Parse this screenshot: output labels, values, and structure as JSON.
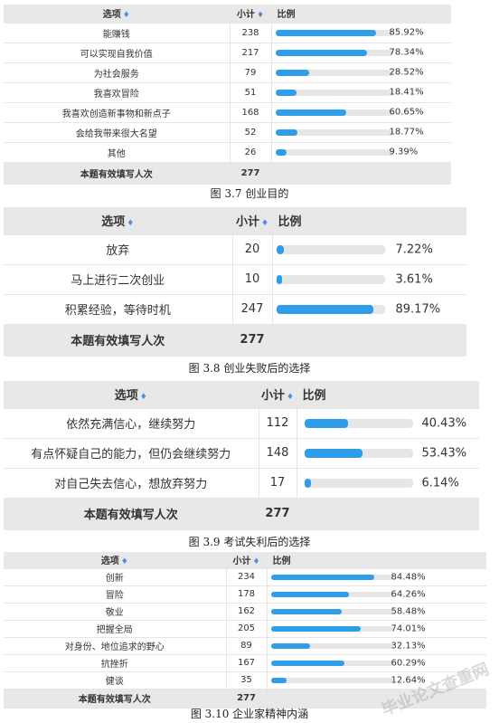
{
  "tables": [
    {
      "headers": {
        "option": "选项",
        "count": "小计",
        "ratio": "比例",
        "sort_glyph": "♦"
      },
      "rows": [
        {
          "label": "能赚钱",
          "count": "238",
          "pct": "85.92%",
          "ratio": 0.8592
        },
        {
          "label": "可以实现自我价值",
          "count": "217",
          "pct": "78.34%",
          "ratio": 0.7834
        },
        {
          "label": "为社会服务",
          "count": "79",
          "pct": "28.52%",
          "ratio": 0.2852
        },
        {
          "label": "我喜欢冒险",
          "count": "51",
          "pct": "18.41%",
          "ratio": 0.1841
        },
        {
          "label": "我喜欢创造新事物和新点子",
          "count": "168",
          "pct": "60.65%",
          "ratio": 0.6065
        },
        {
          "label": "会给我带来很大名望",
          "count": "52",
          "pct": "18.77%",
          "ratio": 0.1877
        },
        {
          "label": "其他",
          "count": "26",
          "pct": "9.39%",
          "ratio": 0.0939
        }
      ],
      "total": {
        "label": "本题有效填写人次",
        "count": "277"
      },
      "caption": "图 3.7   创业目的"
    },
    {
      "headers": {
        "option": "选项",
        "count": "小计",
        "ratio": "比例",
        "sort_glyph": "♦"
      },
      "rows": [
        {
          "label": "放弃",
          "count": "20",
          "pct": "7.22%",
          "ratio": 0.0722
        },
        {
          "label": "马上进行二次创业",
          "count": "10",
          "pct": "3.61%",
          "ratio": 0.0361
        },
        {
          "label": "积累经验，等待时机",
          "count": "247",
          "pct": "89.17%",
          "ratio": 0.8917
        }
      ],
      "total": {
        "label": "本题有效填写人次",
        "count": "277"
      },
      "caption": "图 3.8   创业失败后的选择"
    },
    {
      "headers": {
        "option": "选项",
        "count": "小计",
        "ratio": "比例",
        "sort_glyph": "♦"
      },
      "rows": [
        {
          "label": "依然充满信心，继续努力",
          "count": "112",
          "pct": "40.43%",
          "ratio": 0.4043
        },
        {
          "label": "有点怀疑自己的能力，但仍会继续努力",
          "count": "148",
          "pct": "53.43%",
          "ratio": 0.5343
        },
        {
          "label": "对自己失去信心，想放弃努力",
          "count": "17",
          "pct": "6.14%",
          "ratio": 0.0614
        }
      ],
      "total": {
        "label": "本题有效填写人次",
        "count": "277"
      },
      "caption": "图 3.9   考试失利后的选择"
    },
    {
      "headers": {
        "option": "选项",
        "count": "小计",
        "ratio": "比例",
        "sort_glyph": "♦"
      },
      "rows": [
        {
          "label": "创新",
          "count": "234",
          "pct": "84.48%",
          "ratio": 0.8448
        },
        {
          "label": "冒险",
          "count": "178",
          "pct": "64.26%",
          "ratio": 0.6426
        },
        {
          "label": "敬业",
          "count": "162",
          "pct": "58.48%",
          "ratio": 0.5848
        },
        {
          "label": "把握全局",
          "count": "205",
          "pct": "74.01%",
          "ratio": 0.7401
        },
        {
          "label": "对身份、地位追求的野心",
          "count": "89",
          "pct": "32.13%",
          "ratio": 0.3213
        },
        {
          "label": "抗挫折",
          "count": "167",
          "pct": "60.29%",
          "ratio": 0.6029
        },
        {
          "label": "健谈",
          "count": "35",
          "pct": "12.64%",
          "ratio": 0.1264
        }
      ],
      "total": {
        "label": "本题有效填写人次",
        "count": "277"
      },
      "caption": "图 3.10   企业家精神内涵"
    }
  ],
  "watermark": "毕业论文查重网",
  "colors": {
    "bar": "#2f9ee8",
    "track": "#e6e6e6",
    "header_bg": "#e8e8e8"
  }
}
